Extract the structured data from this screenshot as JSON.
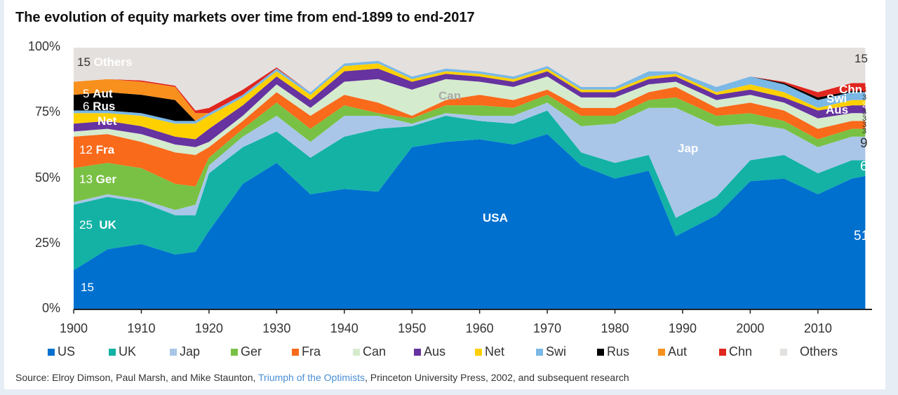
{
  "title": "The evolution of equity markets over time from end-1899 to end-2017",
  "source": {
    "prefix": "Source: Elroy Dimson, Paul Marsh, and Mike Staunton, ",
    "link": "Triumph of the Optimists",
    "suffix": ", Princeton University Press, 2002, and subsequent research"
  },
  "chart_data": {
    "type": "area",
    "stacked": true,
    "title": "The evolution of equity markets over time from end-1899 to end-2017",
    "xlim": [
      1900,
      2018
    ],
    "ylim": [
      0,
      100
    ],
    "x_ticks": [
      "1900",
      "1910",
      "1920",
      "1930",
      "1940",
      "1950",
      "1960",
      "1970",
      "1980",
      "1990",
      "2000",
      "2010"
    ],
    "y_ticks": [
      "0%",
      "25%",
      "50%",
      "75%",
      "100%"
    ],
    "legend_position": "bottom",
    "x": [
      1900,
      1905,
      1910,
      1915,
      1918,
      1920,
      1925,
      1930,
      1935,
      1940,
      1945,
      1950,
      1955,
      1960,
      1965,
      1970,
      1975,
      1980,
      1985,
      1989,
      1995,
      2000,
      2005,
      2010,
      2015,
      2017
    ],
    "series": [
      {
        "name": "US",
        "color": "#0070cf",
        "values": [
          15,
          23,
          25,
          21,
          22,
          30,
          48,
          56,
          44,
          46,
          45,
          62,
          64,
          65,
          63,
          67,
          55,
          50,
          53,
          28,
          36,
          49,
          50,
          44,
          50,
          51
        ]
      },
      {
        "name": "UK",
        "color": "#13b2a5",
        "values": [
          25,
          20,
          16,
          15,
          14,
          22,
          14,
          12,
          14,
          20,
          24,
          8,
          10,
          7,
          8,
          9,
          5,
          6,
          6,
          7,
          7,
          8,
          9,
          8,
          7,
          6
        ]
      },
      {
        "name": "Jap",
        "color": "#a9c6e8",
        "values": [
          1,
          1,
          1,
          2,
          4,
          3,
          4,
          6,
          6,
          8,
          5,
          1,
          1,
          2,
          3,
          3,
          10,
          15,
          18,
          42,
          27,
          14,
          10,
          10,
          9,
          9
        ]
      },
      {
        "name": "Ger",
        "color": "#79c144",
        "values": [
          13,
          12,
          12,
          10,
          7,
          3,
          3,
          5,
          5,
          4,
          1,
          2,
          3,
          4,
          3,
          3,
          4,
          3,
          3,
          4,
          4,
          4,
          3,
          3,
          3,
          3
        ]
      },
      {
        "name": "Fra",
        "color": "#f96a1b",
        "values": [
          12,
          11,
          10,
          12,
          12,
          4,
          3,
          4,
          5,
          4,
          4,
          1,
          2,
          4,
          3,
          2,
          3,
          3,
          3,
          4,
          3,
          4,
          4,
          4,
          3,
          3
        ]
      },
      {
        "name": "Can",
        "color": "#d5ebcd",
        "values": [
          2,
          2,
          3,
          3,
          3,
          2,
          2,
          3,
          3,
          5,
          9,
          10,
          8,
          5,
          5,
          5,
          4,
          4,
          3,
          2,
          3,
          3,
          3,
          4,
          3,
          3
        ]
      },
      {
        "name": "Aus",
        "color": "#6633a0",
        "values": [
          3,
          3,
          3,
          3,
          3,
          5,
          4,
          3,
          3,
          4,
          4,
          3,
          2,
          2,
          2,
          2,
          2,
          2,
          2,
          2,
          2,
          2,
          2,
          3,
          3,
          3
        ]
      },
      {
        "name": "Net",
        "color": "#ffd000",
        "values": [
          4,
          3,
          4,
          5,
          6,
          5,
          3,
          2,
          2,
          2,
          2,
          1,
          1,
          1,
          1,
          1,
          1,
          1,
          1,
          1,
          1,
          2,
          2,
          1,
          2,
          2
        ]
      },
      {
        "name": "Swi",
        "color": "#7ab8e6",
        "values": [
          1,
          1,
          1,
          1,
          1,
          1,
          1,
          1,
          1,
          1,
          1,
          1,
          1,
          1,
          1,
          1,
          1,
          1,
          2,
          1,
          2,
          3,
          3,
          3,
          3,
          3
        ]
      },
      {
        "name": "Rus",
        "color": "#000000",
        "values": [
          6,
          7,
          7,
          8,
          0,
          0,
          0,
          0,
          0,
          0,
          0,
          0,
          0,
          0,
          0,
          0,
          0,
          0,
          0,
          0,
          0,
          0,
          0.5,
          1,
          0.5,
          0.5
        ]
      },
      {
        "name": "Aut",
        "color": "#f8901e",
        "values": [
          5,
          5,
          5,
          5,
          3,
          0,
          0,
          0,
          0,
          0,
          0,
          0,
          0,
          0,
          0,
          0,
          0,
          0,
          0,
          0,
          0,
          0,
          0,
          0,
          0,
          0
        ]
      },
      {
        "name": "Chn",
        "color": "#e0261e",
        "values": [
          0,
          0,
          0.5,
          0.5,
          1,
          2,
          2,
          0.5,
          0,
          0,
          0,
          0,
          0,
          0,
          0,
          0,
          0,
          0,
          0,
          0,
          0,
          0,
          0.5,
          2,
          3,
          3
        ]
      },
      {
        "name": "Others",
        "color": "#e4e0dd",
        "values": "remainder to 100"
      }
    ],
    "annotations": {
      "start": [
        {
          "num": "15",
          "name": "Others"
        },
        {
          "num": "5",
          "name": "Aut"
        },
        {
          "num": "6",
          "name": "Rus"
        },
        {
          "num": "",
          "name": "Net"
        },
        {
          "num": "12",
          "name": "Fra"
        },
        {
          "num": "13",
          "name": "Ger"
        },
        {
          "num": "25",
          "name": "UK"
        },
        {
          "num": "15",
          "name": ""
        }
      ],
      "middle": {
        "can": "Can",
        "usa": "USA",
        "jap": "Jap"
      },
      "end_names": {
        "chn": "Chn",
        "swi": "Swi",
        "aus": "Aus"
      },
      "end_values": {
        "others": "15",
        "chn": "3",
        "swi": "3",
        "net": "2",
        "aus": "3",
        "can": "3",
        "fra": "3",
        "ger": "3",
        "jap": "9",
        "uk": "6",
        "us": "51"
      }
    }
  }
}
